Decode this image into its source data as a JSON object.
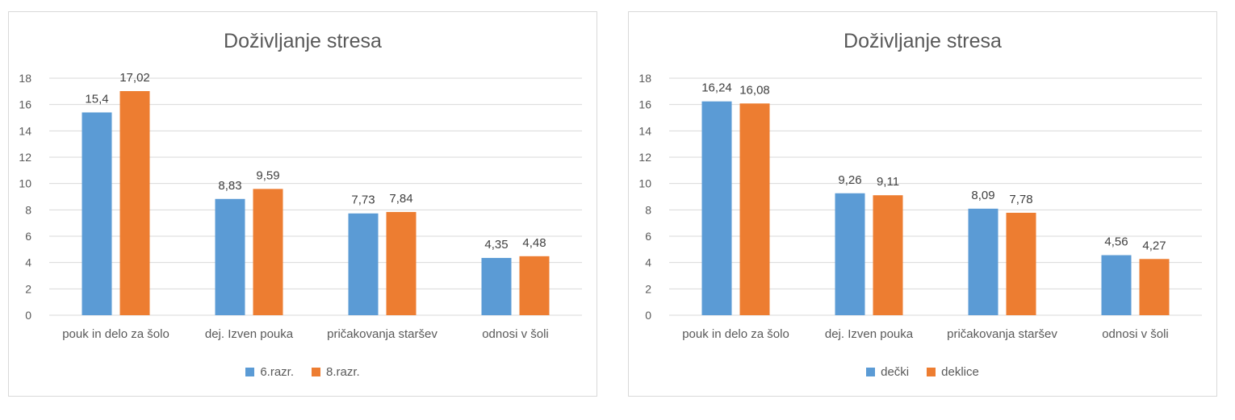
{
  "chart_data": [
    {
      "type": "bar",
      "title": "Doživljanje stresa",
      "categories": [
        "pouk in delo za šolo",
        "dej. Izven pouka",
        "pričakovanja staršev",
        "odnosi v šoli"
      ],
      "series": [
        {
          "name": "6.razr.",
          "values": [
            15.4,
            8.83,
            7.73,
            4.35
          ],
          "labels": [
            "15,4",
            "8,83",
            "7,73",
            "4,35"
          ],
          "color": "#5b9bd5"
        },
        {
          "name": "8.razr.",
          "values": [
            17.02,
            9.59,
            7.84,
            4.48
          ],
          "labels": [
            "17,02",
            "9,59",
            "7,84",
            "4,48"
          ],
          "color": "#ed7d31"
        }
      ],
      "ylim": [
        0,
        18
      ],
      "yticks": [
        0,
        2,
        4,
        6,
        8,
        10,
        12,
        14,
        16,
        18
      ],
      "grid": true,
      "legend": "bottom"
    },
    {
      "type": "bar",
      "title": "Doživljanje stresa",
      "categories": [
        "pouk in delo za šolo",
        "dej. Izven pouka",
        "pričakovanja staršev",
        "odnosi v šoli"
      ],
      "series": [
        {
          "name": "dečki",
          "values": [
            16.24,
            9.26,
            8.09,
            4.56
          ],
          "labels": [
            "16,24",
            "9,26",
            "8,09",
            "4,56"
          ],
          "color": "#5b9bd5"
        },
        {
          "name": "deklice",
          "values": [
            16.08,
            9.11,
            7.78,
            4.27
          ],
          "labels": [
            "16,08",
            "9,11",
            "7,78",
            "4,27"
          ],
          "color": "#ed7d31"
        }
      ],
      "ylim": [
        0,
        18
      ],
      "yticks": [
        0,
        2,
        4,
        6,
        8,
        10,
        12,
        14,
        16,
        18
      ],
      "grid": true,
      "legend": "bottom"
    }
  ]
}
